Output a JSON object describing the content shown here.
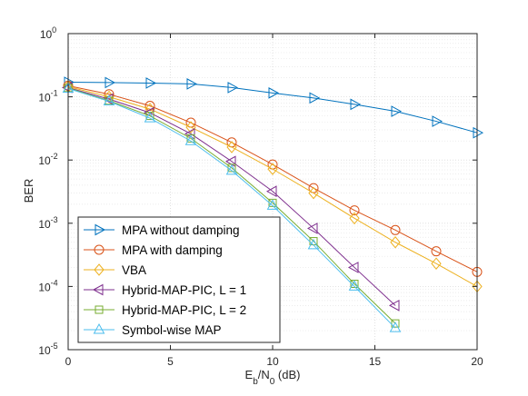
{
  "chart_data": {
    "type": "line",
    "xlabel": "E_b/N_0 (dB)",
    "xlabel_parts": {
      "base1": "E",
      "sub1": "b",
      "mid": "/N",
      "sub2": "0",
      "tail": " (dB)"
    },
    "ylabel": "BER",
    "xlim": [
      0,
      20
    ],
    "ylim": [
      1e-05,
      1
    ],
    "y_scale": "log",
    "grid": true,
    "legend_position": "bottom-left",
    "x_ticks": [
      {
        "value": 0,
        "label": "0"
      },
      {
        "value": 5,
        "label": "5"
      },
      {
        "value": 10,
        "label": "10"
      },
      {
        "value": 15,
        "label": "15"
      },
      {
        "value": 20,
        "label": "20"
      }
    ],
    "y_ticks": [
      {
        "value": 1,
        "base": "10",
        "exp": "0"
      },
      {
        "value": 0.1,
        "base": "10",
        "exp": "-1"
      },
      {
        "value": 0.01,
        "base": "10",
        "exp": "-2"
      },
      {
        "value": 0.001,
        "base": "10",
        "exp": "-3"
      },
      {
        "value": 0.0001,
        "base": "10",
        "exp": "-4"
      },
      {
        "value": 1e-05,
        "base": "10",
        "exp": "-5"
      }
    ],
    "series": [
      {
        "name": "MPA without damping",
        "color": "#0072BD",
        "marker": "triangle-right",
        "x": [
          0,
          2,
          4,
          6,
          8,
          10,
          12,
          14,
          16,
          18,
          20
        ],
        "y": [
          0.17,
          0.168,
          0.165,
          0.16,
          0.14,
          0.115,
          0.096,
          0.076,
          0.059,
          0.041,
          0.027
        ]
      },
      {
        "name": "MPA with damping",
        "color": "#D95319",
        "marker": "circle",
        "x": [
          0,
          2,
          4,
          6,
          8,
          10,
          12,
          14,
          16,
          18,
          20
        ],
        "y": [
          0.15,
          0.11,
          0.072,
          0.039,
          0.019,
          0.0085,
          0.0036,
          0.0016,
          0.00078,
          0.00036,
          0.00017
        ]
      },
      {
        "name": "VBA",
        "color": "#EDB120",
        "marker": "diamond",
        "x": [
          0,
          2,
          4,
          6,
          8,
          10,
          12,
          14,
          16,
          18,
          20
        ],
        "y": [
          0.145,
          0.1,
          0.064,
          0.033,
          0.016,
          0.0072,
          0.003,
          0.0012,
          0.0005,
          0.00023,
          0.0001
        ]
      },
      {
        "name": "Hybrid-MAP-PIC, L = 1",
        "color": "#7E2F8E",
        "marker": "triangle-left",
        "x": [
          0,
          2,
          4,
          6,
          8,
          10,
          12,
          14,
          16
        ],
        "y": [
          0.14,
          0.092,
          0.056,
          0.026,
          0.0095,
          0.0032,
          0.00083,
          0.0002,
          5e-05
        ]
      },
      {
        "name": "Hybrid-MAP-PIC, L = 2",
        "color": "#77AC30",
        "marker": "square",
        "x": [
          0,
          2,
          4,
          6,
          8,
          10,
          12,
          14,
          16
        ],
        "y": [
          0.138,
          0.087,
          0.05,
          0.022,
          0.0075,
          0.0021,
          0.00052,
          0.00011,
          2.6e-05
        ]
      },
      {
        "name": "Symbol-wise MAP",
        "color": "#4DBEEE",
        "marker": "triangle-up",
        "x": [
          0,
          2,
          4,
          6,
          8,
          10,
          12,
          14,
          16
        ],
        "y": [
          0.135,
          0.085,
          0.046,
          0.02,
          0.0068,
          0.0019,
          0.00045,
          0.0001,
          2.2e-05
        ]
      }
    ]
  }
}
